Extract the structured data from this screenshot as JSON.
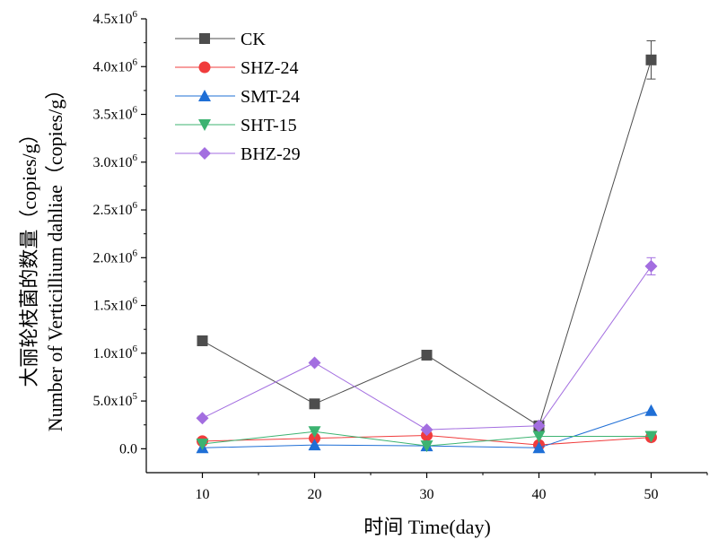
{
  "chart_data": {
    "type": "line",
    "xlabel": "时间 Time(day)",
    "ylabel_cn": "大丽轮枝菌的数量（copies/g）",
    "ylabel_en": "Number of Verticillium dahliae（copies/g）",
    "x": [
      10,
      20,
      30,
      40,
      50
    ],
    "xlim": [
      5,
      55
    ],
    "ylim": [
      -250000,
      4500000
    ],
    "x_ticks": [
      10,
      20,
      30,
      40,
      50
    ],
    "y_ticks": [
      {
        "value": 0,
        "mantissa": "0.0",
        "exp": ""
      },
      {
        "value": 500000,
        "mantissa": "5.0x10",
        "exp": "5"
      },
      {
        "value": 1000000,
        "mantissa": "1.0x10",
        "exp": "6"
      },
      {
        "value": 1500000,
        "mantissa": "1.5x10",
        "exp": "6"
      },
      {
        "value": 2000000,
        "mantissa": "2.0x10",
        "exp": "6"
      },
      {
        "value": 2500000,
        "mantissa": "2.5x10",
        "exp": "6"
      },
      {
        "value": 3000000,
        "mantissa": "3.0x10",
        "exp": "6"
      },
      {
        "value": 3500000,
        "mantissa": "3.5x10",
        "exp": "6"
      },
      {
        "value": 4000000,
        "mantissa": "4.0x10",
        "exp": "6"
      },
      {
        "value": 4500000,
        "mantissa": "4.5x10",
        "exp": "6"
      }
    ],
    "legend_position": "top-left",
    "grid": false,
    "series": [
      {
        "name": "CK",
        "color": "#4d4d4d",
        "marker": "square",
        "values": [
          1130000,
          470000,
          980000,
          240000,
          4070000
        ],
        "errors": [
          0,
          0,
          0,
          0,
          200000
        ]
      },
      {
        "name": "SHZ-24",
        "color": "#f03c3c",
        "marker": "circle",
        "values": [
          80000,
          110000,
          140000,
          40000,
          120000
        ],
        "errors": [
          0,
          0,
          0,
          0,
          0
        ]
      },
      {
        "name": "SMT-24",
        "color": "#1f6fd6",
        "marker": "triangle-up",
        "values": [
          10000,
          40000,
          30000,
          10000,
          400000
        ],
        "errors": [
          0,
          0,
          0,
          0,
          0
        ]
      },
      {
        "name": "SHT-15",
        "color": "#3cb371",
        "marker": "triangle-down",
        "values": [
          50000,
          180000,
          30000,
          130000,
          130000
        ],
        "errors": [
          0,
          0,
          0,
          0,
          0
        ]
      },
      {
        "name": "BHZ-29",
        "color": "#a36ee0",
        "marker": "diamond",
        "values": [
          320000,
          900000,
          200000,
          240000,
          1910000
        ],
        "errors": [
          0,
          0,
          0,
          0,
          90000
        ]
      }
    ]
  }
}
